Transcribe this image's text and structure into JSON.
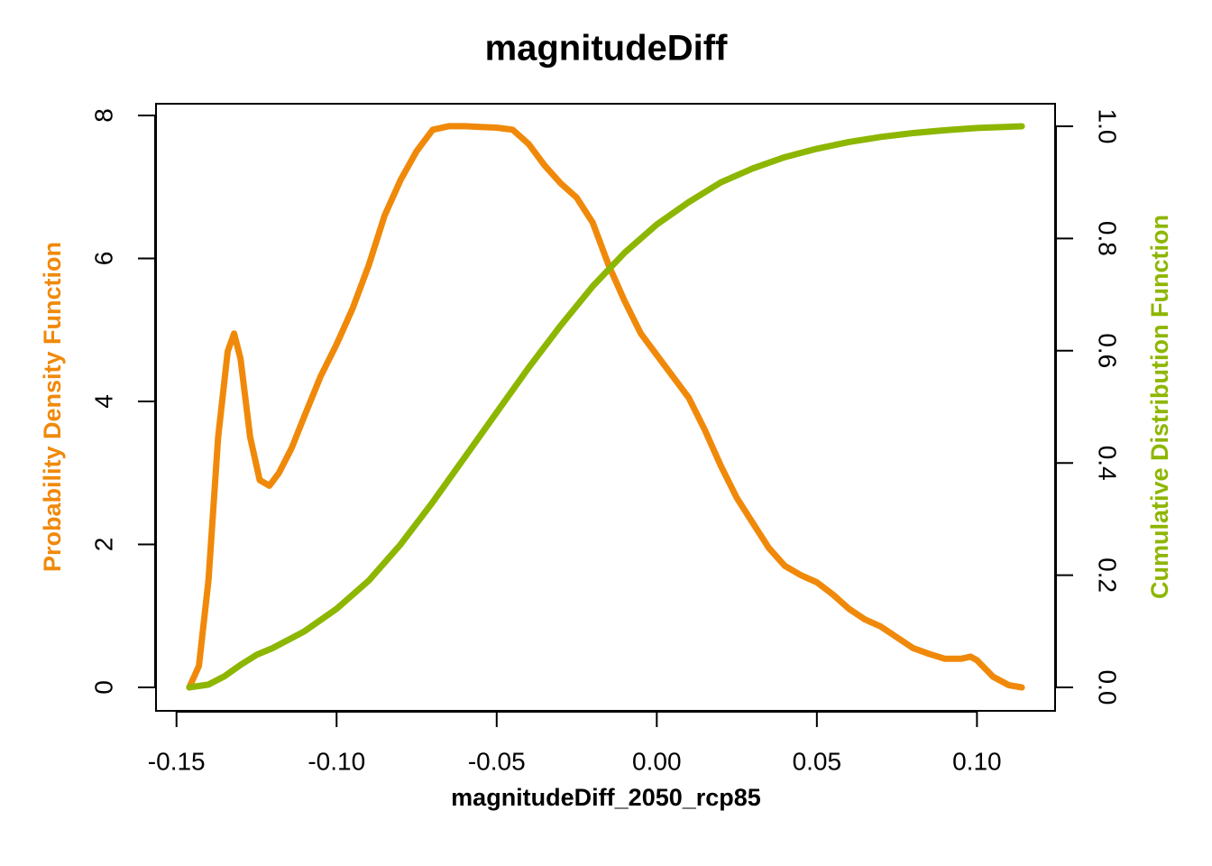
{
  "chart_data": {
    "type": "line",
    "title": "magnitudeDiff",
    "xlabel": "magnitudeDiff_2050_rcp85",
    "ylabel": "Probability Density Function",
    "y2label": "Cumulative Distribution Function",
    "xlim": [
      -0.1564,
      0.1244
    ],
    "ylim": [
      -0.328,
      8.164
    ],
    "y2lim": [
      -0.0418,
      1.0402
    ],
    "xticks": [
      -0.15,
      {
        "value": -0.1,
        "label": "-0.10"
      },
      -0.05,
      {
        "value": 0,
        "label": "0.00"
      },
      0.05,
      {
        "value": 0.1,
        "label": "0.10"
      }
    ],
    "yticks": [
      0,
      2,
      4,
      6,
      8
    ],
    "y2ticks": [
      {
        "value": 0,
        "label": "0.0"
      },
      0.2,
      0.4,
      0.6,
      0.8,
      {
        "value": 1,
        "label": "1.0"
      }
    ],
    "series": [
      {
        "name": "Probability Density Function",
        "color": "#f0890a",
        "axis": "y",
        "x": [
          -0.146,
          -0.143,
          -0.14,
          -0.137,
          -0.134,
          -0.132,
          -0.13,
          -0.127,
          -0.124,
          -0.121,
          -0.118,
          -0.114,
          -0.11,
          -0.105,
          -0.1,
          -0.095,
          -0.09,
          -0.085,
          -0.08,
          -0.075,
          -0.07,
          -0.065,
          -0.06,
          -0.055,
          -0.05,
          -0.045,
          -0.04,
          -0.035,
          -0.03,
          -0.025,
          -0.02,
          -0.015,
          -0.01,
          -0.005,
          0,
          0.005,
          0.01,
          0.015,
          0.02,
          0.025,
          0.03,
          0.035,
          0.04,
          0.045,
          0.05,
          0.055,
          0.06,
          0.065,
          0.07,
          0.075,
          0.08,
          0.085,
          0.09,
          0.095,
          0.098,
          0.1,
          0.105,
          0.11,
          0.114
        ],
        "values": [
          0,
          0.3,
          1.5,
          3.5,
          4.7,
          4.95,
          4.6,
          3.5,
          2.9,
          2.82,
          3.0,
          3.35,
          3.8,
          4.35,
          4.8,
          5.3,
          5.9,
          6.6,
          7.1,
          7.5,
          7.8,
          7.85,
          7.85,
          7.84,
          7.83,
          7.8,
          7.6,
          7.3,
          7.05,
          6.85,
          6.5,
          5.9,
          5.4,
          4.95,
          4.65,
          4.35,
          4.05,
          3.6,
          3.1,
          2.65,
          2.3,
          1.95,
          1.7,
          1.57,
          1.47,
          1.3,
          1.1,
          0.95,
          0.85,
          0.7,
          0.55,
          0.47,
          0.4,
          0.4,
          0.43,
          0.38,
          0.15,
          0.03,
          0
        ]
      },
      {
        "name": "Cumulative Distribution Function",
        "color": "#8db600",
        "axis": "y2",
        "x": [
          -0.146,
          -0.14,
          -0.135,
          -0.13,
          -0.125,
          -0.12,
          -0.11,
          -0.1,
          -0.09,
          -0.08,
          -0.07,
          -0.06,
          -0.05,
          -0.04,
          -0.03,
          -0.02,
          -0.01,
          0,
          0.01,
          0.02,
          0.03,
          0.04,
          0.05,
          0.06,
          0.07,
          0.08,
          0.09,
          0.1,
          0.114
        ],
        "values": [
          0,
          0.005,
          0.02,
          0.04,
          0.058,
          0.07,
          0.1,
          0.14,
          0.19,
          0.255,
          0.33,
          0.41,
          0.49,
          0.57,
          0.645,
          0.715,
          0.775,
          0.825,
          0.865,
          0.9,
          0.925,
          0.945,
          0.96,
          0.972,
          0.981,
          0.988,
          0.993,
          0.997,
          1.0
        ]
      }
    ]
  }
}
